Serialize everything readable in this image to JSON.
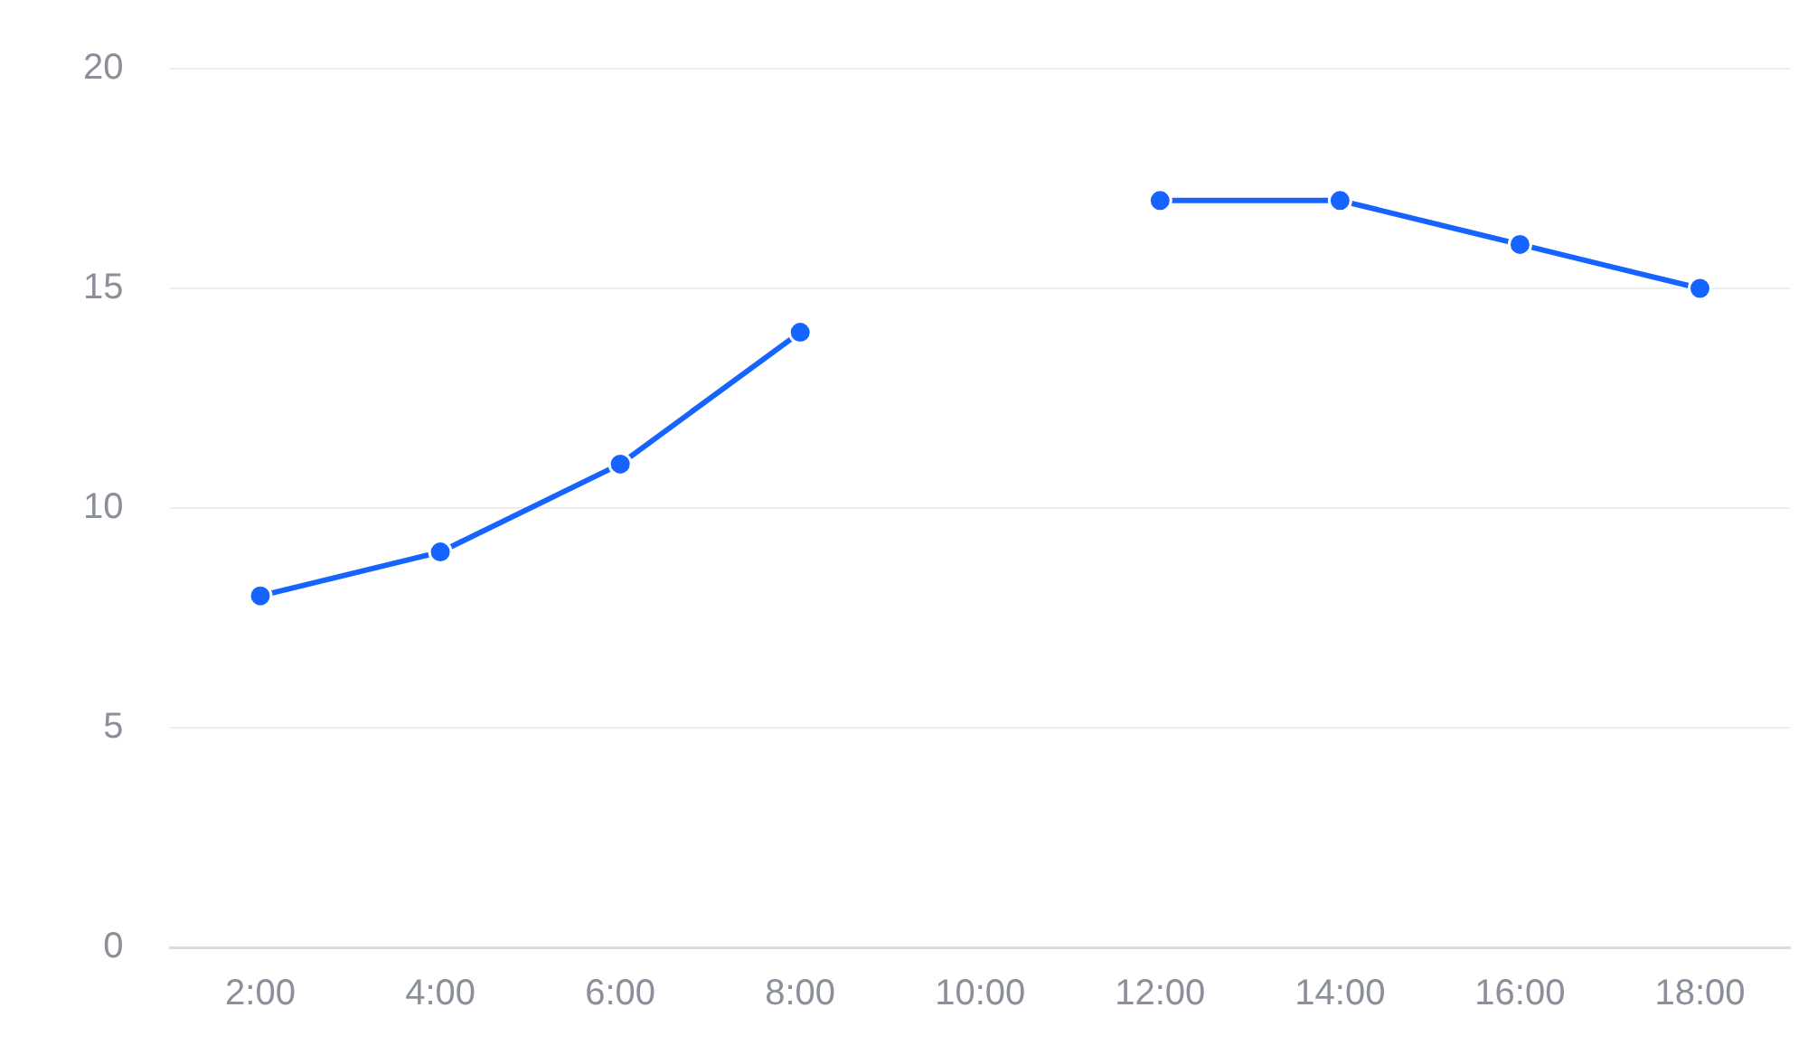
{
  "chart_data": {
    "type": "line",
    "categories": [
      "2:00",
      "4:00",
      "6:00",
      "8:00",
      "10:00",
      "12:00",
      "14:00",
      "16:00",
      "18:00"
    ],
    "series": [
      {
        "color": "#1664ff",
        "values": [
          8,
          9,
          11,
          14,
          null,
          17,
          17,
          16,
          15
        ]
      }
    ],
    "ylim": [
      0,
      20
    ],
    "yticks": [
      0,
      5,
      10,
      15,
      20
    ],
    "grid": "y",
    "legend": false,
    "marker": "circle",
    "line_style": "solid"
  }
}
